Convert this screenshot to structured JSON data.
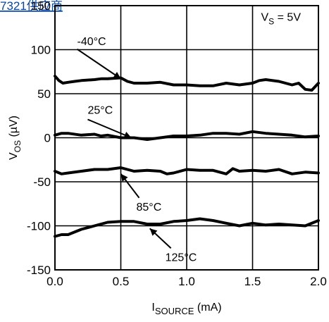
{
  "page_header": "7321供应商",
  "chart_data": {
    "type": "line",
    "xlabel": "I_SOURCE (mA)",
    "ylabel": "V_OS (µV)",
    "xlim": [
      0.0,
      2.0
    ],
    "ylim": [
      -150,
      150
    ],
    "xticks": [
      "0.0",
      "0.5",
      "1.0",
      "1.5",
      "2.0"
    ],
    "yticks": [
      "150",
      "100",
      "50",
      "0",
      "-50",
      "-100",
      "-150"
    ],
    "grid": true,
    "condition": "V_S = 5V",
    "series": [
      {
        "name": "-40°C",
        "x": [
          0.0,
          0.03,
          0.06,
          0.1,
          0.15,
          0.2,
          0.3,
          0.35,
          0.4,
          0.5,
          0.55,
          0.6,
          0.7,
          0.8,
          0.9,
          1.0,
          1.1,
          1.2,
          1.3,
          1.4,
          1.5,
          1.55,
          1.6,
          1.7,
          1.8,
          1.85,
          1.9,
          1.95,
          2.0
        ],
        "y": [
          70,
          65,
          62,
          63,
          64,
          65,
          66,
          67,
          67,
          68,
          64,
          62,
          62,
          63,
          60,
          60,
          59,
          59,
          62,
          60,
          62,
          65,
          66,
          64,
          60,
          62,
          55,
          54,
          62
        ]
      },
      {
        "name": "25°C",
        "x": [
          0.0,
          0.05,
          0.1,
          0.2,
          0.3,
          0.35,
          0.4,
          0.5,
          0.6,
          0.7,
          0.8,
          0.9,
          1.0,
          1.1,
          1.2,
          1.3,
          1.4,
          1.5,
          1.6,
          1.7,
          1.8,
          1.9,
          2.0
        ],
        "y": [
          3,
          5,
          5,
          3,
          4,
          2,
          3,
          0,
          0,
          -2,
          0,
          2,
          2,
          3,
          5,
          5,
          4,
          7,
          5,
          4,
          3,
          1,
          2
        ]
      },
      {
        "name": "85°C",
        "x": [
          0.0,
          0.05,
          0.1,
          0.2,
          0.3,
          0.4,
          0.5,
          0.6,
          0.7,
          0.8,
          0.85,
          0.9,
          1.0,
          1.1,
          1.2,
          1.3,
          1.35,
          1.4,
          1.5,
          1.6,
          1.7,
          1.8,
          1.9,
          2.0
        ],
        "y": [
          -38,
          -41,
          -40,
          -38,
          -36,
          -36,
          -34,
          -38,
          -37,
          -38,
          -41,
          -40,
          -36,
          -37,
          -37,
          -41,
          -35,
          -38,
          -37,
          -38,
          -36,
          -41,
          -39,
          -40
        ]
      },
      {
        "name": "125°C",
        "x": [
          0.0,
          0.05,
          0.1,
          0.2,
          0.3,
          0.4,
          0.5,
          0.6,
          0.7,
          0.8,
          0.9,
          1.0,
          1.1,
          1.2,
          1.3,
          1.4,
          1.5,
          1.6,
          1.7,
          1.8,
          1.9,
          2.0
        ],
        "y": [
          -112,
          -110,
          -110,
          -104,
          -100,
          -96,
          -95,
          -95,
          -98,
          -98,
          -95,
          -94,
          -92,
          -94,
          -97,
          -100,
          -97,
          -99,
          -98,
          -99,
          -100,
          -94
        ]
      }
    ],
    "annotations": [
      {
        "text": "-40°C",
        "target_x": 0.5,
        "target_y": 67
      },
      {
        "text": "25°C",
        "target_x": 0.58,
        "target_y": 0
      },
      {
        "text": "85°C",
        "target_x": 0.5,
        "target_y": -41
      },
      {
        "text": "125°C",
        "target_x": 0.72,
        "target_y": -103
      }
    ]
  }
}
